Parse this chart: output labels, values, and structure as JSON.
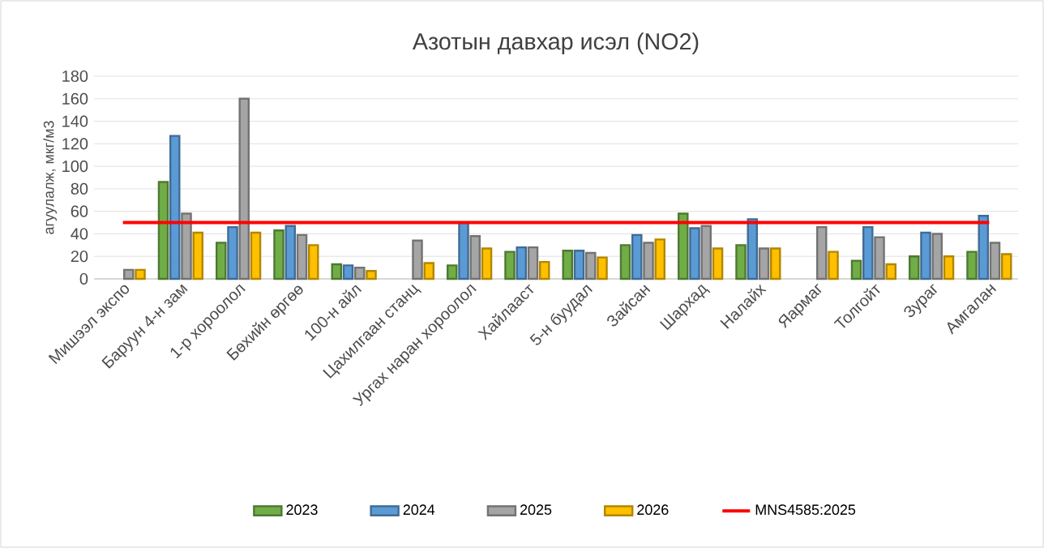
{
  "chart_data": {
    "type": "bar",
    "title": "Азотын давхар исэл (NO2)",
    "ylabel": "агуулалж, мкг/м3",
    "categories": [
      "Мишээл экспо",
      "Баруун 4-н зам",
      "1-р хороолол",
      "Бөхийн өргөө",
      "100-н айл",
      "Цахилгаан станц",
      "Ургах наран хороолол",
      "Хайлааст",
      "5-н буудал",
      "Зайсан",
      "Шархад",
      "Налайх",
      "Яармаг",
      "Толгойт",
      "Зураг",
      "Амгалан"
    ],
    "series": [
      {
        "name": "2023",
        "color": "#70ad47",
        "values": [
          null,
          86,
          32,
          43,
          13,
          null,
          12,
          24,
          25,
          30,
          58,
          30,
          null,
          16,
          20,
          24
        ]
      },
      {
        "name": "2024",
        "color": "#5b9bd5",
        "values": [
          null,
          127,
          46,
          47,
          12,
          null,
          50,
          28,
          25,
          39,
          45,
          53,
          null,
          46,
          41,
          56
        ]
      },
      {
        "name": "2025",
        "color": "#a5a5a5",
        "values": [
          8,
          58,
          160,
          39,
          10,
          34,
          38,
          28,
          23,
          32,
          47,
          27,
          46,
          37,
          40,
          32
        ]
      },
      {
        "name": "2026",
        "color": "#ffc000",
        "values": [
          8,
          41,
          41,
          30,
          7,
          14,
          27,
          15,
          19,
          35,
          27,
          27,
          24,
          13,
          20,
          22
        ]
      },
      {
        "name": "MNS4585:2025",
        "type": "line",
        "color": "#ff0000",
        "values": [
          50,
          50,
          50,
          50,
          50,
          50,
          50,
          50,
          50,
          50,
          50,
          50,
          50,
          50,
          50,
          50
        ]
      }
    ],
    "ylim": [
      0,
      180
    ],
    "yticks": [
      0,
      20,
      40,
      60,
      80,
      100,
      120,
      140,
      160,
      180
    ],
    "grid": "y",
    "legend": "bottom"
  }
}
